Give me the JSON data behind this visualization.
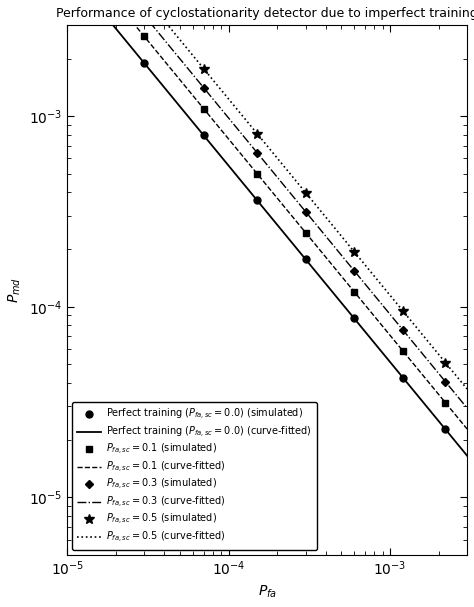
{
  "title": "Performance of cyclostationarity detector due to imperfect training",
  "xlabel": "$P_{fa}$",
  "ylabel": "$P_{md}$",
  "xlim": [
    1e-05,
    0.003
  ],
  "ylim": [
    5e-06,
    0.003
  ],
  "series": [
    {
      "label_sim": "Perfect training ($P_{fa,sc} = 0.0$) (simulated)",
      "label_fit": "Perfect training ($P_{fa,sc} = 0.0$) (curve-fitted)",
      "linestyle_fit": "solid",
      "marker": "o",
      "slope": -1.03,
      "intercept": -7.38
    },
    {
      "label_sim": "$P_{fa,sc} = 0.1$ (simulated)",
      "label_fit": "$P_{fa,sc} = 0.1$ (curve-fitted)",
      "linestyle_fit": "dashed",
      "marker": "s",
      "slope": -1.03,
      "intercept": -7.24
    },
    {
      "label_sim": "$P_{fa,sc} = 0.3$ (simulated)",
      "label_fit": "$P_{fa,sc} = 0.3$ (curve-fitted)",
      "linestyle_fit": "dashdot",
      "marker": "D",
      "slope": -1.03,
      "intercept": -7.13
    },
    {
      "label_sim": "$P_{fa,sc} = 0.5$ (simulated)",
      "label_fit": "$P_{fa,sc} = 0.5$ (curve-fitted)",
      "linestyle_fit": "dotted",
      "marker": "*",
      "slope": -1.03,
      "intercept": -7.03
    }
  ],
  "x_markers": [
    1e-05,
    3e-05,
    7e-05,
    0.00015,
    0.0003,
    0.0006,
    0.0012,
    0.0022
  ],
  "color": "black",
  "background_color": "white",
  "linestyles": [
    "solid",
    "dashed",
    "dashdot",
    "dotted"
  ],
  "markers": [
    "o",
    "s",
    "D",
    "*"
  ],
  "marker_sizes": [
    5,
    4,
    4,
    7
  ],
  "linewidths": [
    1.3,
    1.0,
    1.0,
    1.2
  ]
}
